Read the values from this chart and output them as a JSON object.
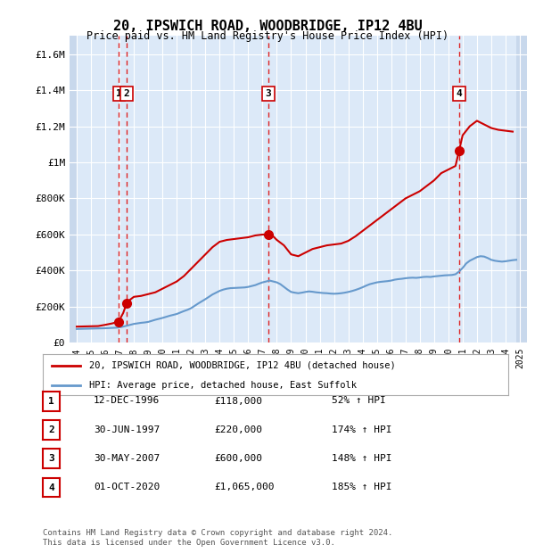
{
  "title": "20, IPSWICH ROAD, WOODBRIDGE, IP12 4BU",
  "subtitle": "Price paid vs. HM Land Registry's House Price Index (HPI)",
  "ylabel": "",
  "ylim": [
    0,
    1700000
  ],
  "yticks": [
    0,
    200000,
    400000,
    600000,
    800000,
    1000000,
    1200000,
    1400000,
    1600000
  ],
  "ytick_labels": [
    "£0",
    "£200K",
    "£400K",
    "£600K",
    "£800K",
    "£1M",
    "£1.2M",
    "£1.4M",
    "£1.6M"
  ],
  "xlim_start": 1993.5,
  "xlim_end": 2025.5,
  "background_color": "#dce9f8",
  "hatch_color": "#c0d0e8",
  "grid_color": "#ffffff",
  "line_color_property": "#cc0000",
  "line_color_hpi": "#6699cc",
  "purchases": [
    {
      "label": "1",
      "year": 1996.95,
      "price": 118000,
      "date": "12-DEC-1996",
      "price_str": "£118,000",
      "hpi_str": "52% ↑ HPI"
    },
    {
      "label": "2",
      "year": 1997.5,
      "price": 220000,
      "date": "30-JUN-1997",
      "price_str": "£220,000",
      "hpi_str": "174% ↑ HPI"
    },
    {
      "label": "3",
      "year": 2007.4,
      "price": 600000,
      "date": "30-MAY-2007",
      "price_str": "£600,000",
      "hpi_str": "148% ↑ HPI"
    },
    {
      "label": "4",
      "year": 2020.75,
      "price": 1065000,
      "date": "01-OCT-2020",
      "price_str": "£1,065,000",
      "hpi_str": "185% ↑ HPI"
    }
  ],
  "dashed_line_years": [
    1996.95,
    2007.4,
    2020.75
  ],
  "legend_property": "20, IPSWICH ROAD, WOODBRIDGE, IP12 4BU (detached house)",
  "legend_hpi": "HPI: Average price, detached house, East Suffolk",
  "footer": "Contains HM Land Registry data © Crown copyright and database right 2024.\nThis data is licensed under the Open Government Licence v3.0.",
  "hpi_data": {
    "years": [
      1994.0,
      1994.25,
      1994.5,
      1994.75,
      1995.0,
      1995.25,
      1995.5,
      1995.75,
      1996.0,
      1996.25,
      1996.5,
      1996.75,
      1997.0,
      1997.25,
      1997.5,
      1997.75,
      1998.0,
      1998.25,
      1998.5,
      1998.75,
      1999.0,
      1999.25,
      1999.5,
      1999.75,
      2000.0,
      2000.25,
      2000.5,
      2000.75,
      2001.0,
      2001.25,
      2001.5,
      2001.75,
      2002.0,
      2002.25,
      2002.5,
      2002.75,
      2003.0,
      2003.25,
      2003.5,
      2003.75,
      2004.0,
      2004.25,
      2004.5,
      2004.75,
      2005.0,
      2005.25,
      2005.5,
      2005.75,
      2006.0,
      2006.25,
      2006.5,
      2006.75,
      2007.0,
      2007.25,
      2007.5,
      2007.75,
      2008.0,
      2008.25,
      2008.5,
      2008.75,
      2009.0,
      2009.25,
      2009.5,
      2009.75,
      2010.0,
      2010.25,
      2010.5,
      2010.75,
      2011.0,
      2011.25,
      2011.5,
      2011.75,
      2012.0,
      2012.25,
      2012.5,
      2012.75,
      2013.0,
      2013.25,
      2013.5,
      2013.75,
      2014.0,
      2014.25,
      2014.5,
      2014.75,
      2015.0,
      2015.25,
      2015.5,
      2015.75,
      2016.0,
      2016.25,
      2016.5,
      2016.75,
      2017.0,
      2017.25,
      2017.5,
      2017.75,
      2018.0,
      2018.25,
      2018.5,
      2018.75,
      2019.0,
      2019.25,
      2019.5,
      2019.75,
      2020.0,
      2020.25,
      2020.5,
      2020.75,
      2021.0,
      2021.25,
      2021.5,
      2021.75,
      2022.0,
      2022.25,
      2022.5,
      2022.75,
      2023.0,
      2023.25,
      2023.5,
      2023.75,
      2024.0,
      2024.25,
      2024.5,
      2024.75
    ],
    "values": [
      77000,
      77500,
      78000,
      78500,
      79000,
      79500,
      80000,
      80500,
      81000,
      82000,
      83000,
      84000,
      86000,
      90000,
      95000,
      100000,
      105000,
      108000,
      111000,
      113000,
      116000,
      122000,
      128000,
      133000,
      138000,
      144000,
      150000,
      155000,
      160000,
      168000,
      176000,
      183000,
      192000,
      205000,
      218000,
      230000,
      242000,
      255000,
      268000,
      278000,
      288000,
      295000,
      300000,
      303000,
      304000,
      305000,
      306000,
      307000,
      310000,
      315000,
      320000,
      328000,
      335000,
      340000,
      345000,
      340000,
      335000,
      325000,
      310000,
      295000,
      282000,
      278000,
      275000,
      278000,
      282000,
      285000,
      283000,
      280000,
      278000,
      276000,
      275000,
      273000,
      272000,
      273000,
      275000,
      278000,
      282000,
      287000,
      293000,
      300000,
      308000,
      317000,
      325000,
      330000,
      335000,
      338000,
      340000,
      342000,
      345000,
      350000,
      353000,
      355000,
      358000,
      360000,
      361000,
      360000,
      362000,
      365000,
      366000,
      365000,
      368000,
      370000,
      372000,
      374000,
      375000,
      376000,
      380000,
      395000,
      415000,
      440000,
      455000,
      465000,
      475000,
      480000,
      478000,
      470000,
      460000,
      455000,
      452000,
      450000,
      452000,
      455000,
      458000,
      460000
    ]
  },
  "property_data": {
    "years": [
      1994.0,
      1994.5,
      1995.0,
      1995.5,
      1996.0,
      1996.5,
      1996.95,
      1997.0,
      1997.25,
      1997.5,
      1997.75,
      1998.0,
      1998.5,
      1999.0,
      1999.5,
      2000.0,
      2000.5,
      2001.0,
      2001.5,
      2002.0,
      2002.5,
      2003.0,
      2003.5,
      2004.0,
      2004.5,
      2005.0,
      2005.5,
      2006.0,
      2006.5,
      2007.0,
      2007.4,
      2007.75,
      2008.0,
      2008.5,
      2009.0,
      2009.5,
      2010.0,
      2010.5,
      2011.0,
      2011.5,
      2012.0,
      2012.5,
      2013.0,
      2013.5,
      2014.0,
      2014.5,
      2015.0,
      2015.5,
      2016.0,
      2016.5,
      2017.0,
      2017.5,
      2018.0,
      2018.5,
      2019.0,
      2019.5,
      2020.0,
      2020.5,
      2020.75,
      2021.0,
      2021.5,
      2022.0,
      2022.5,
      2023.0,
      2023.5,
      2024.0,
      2024.5
    ],
    "values": [
      90000,
      91000,
      92000,
      93000,
      100000,
      108000,
      118000,
      128000,
      165000,
      220000,
      240000,
      255000,
      260000,
      270000,
      280000,
      300000,
      320000,
      340000,
      370000,
      410000,
      450000,
      490000,
      530000,
      560000,
      570000,
      575000,
      580000,
      585000,
      595000,
      600000,
      600000,
      590000,
      570000,
      540000,
      490000,
      480000,
      500000,
      520000,
      530000,
      540000,
      545000,
      550000,
      565000,
      590000,
      620000,
      650000,
      680000,
      710000,
      740000,
      770000,
      800000,
      820000,
      840000,
      870000,
      900000,
      940000,
      960000,
      980000,
      1065000,
      1150000,
      1200000,
      1230000,
      1210000,
      1190000,
      1180000,
      1175000,
      1170000
    ]
  }
}
